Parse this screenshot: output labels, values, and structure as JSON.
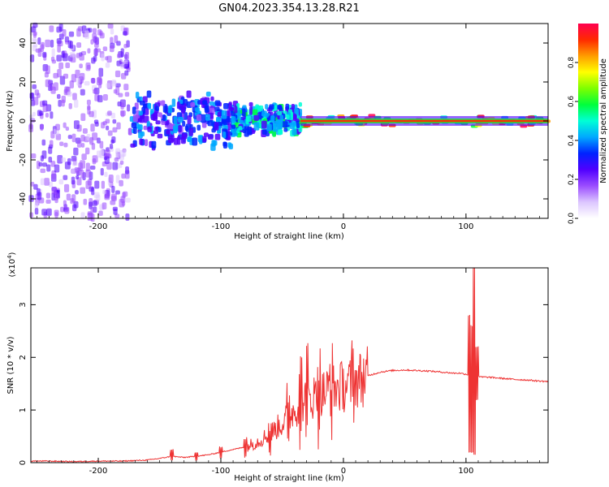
{
  "title": "GN04.2023.354.13.28.R21",
  "chart_data": [
    {
      "type": "heatmap",
      "xlabel": "Height of straight line (km)",
      "ylabel": "Frequency (Hz)",
      "xlim": [
        -255,
        167
      ],
      "ylim": [
        -50,
        50
      ],
      "x_ticks": [
        -200,
        -100,
        0,
        100
      ],
      "y_ticks": [
        -40,
        -20,
        0,
        20,
        40
      ],
      "colorbar": {
        "label": "Normalized spectral amplitude",
        "range": [
          0,
          1
        ],
        "ticks": [
          "0.0",
          "0.2",
          "0.4",
          "0.6",
          "0.8"
        ],
        "colors": [
          "#ffffff",
          "#dcc6ff",
          "#9b4dff",
          "#5000ff",
          "#0022ff",
          "#00a8ff",
          "#00ffd6",
          "#00ff3c",
          "#7dff00",
          "#ffff00",
          "#ff9d00",
          "#ff2a00",
          "#ff0050"
        ]
      },
      "regions": [
        {
          "x_from": -255,
          "x_to": -175,
          "description_band": "broadband",
          "f_range": [
            -50,
            50
          ],
          "level": 0.2
        },
        {
          "x_from": -175,
          "x_to": -90,
          "description_band": "broad",
          "f_range": [
            -15,
            15
          ],
          "level": 0.35
        },
        {
          "x_from": -90,
          "x_to": -35,
          "description_band": "narrowing",
          "f_range": [
            -8,
            10
          ],
          "level": 0.45
        },
        {
          "x_from": -35,
          "x_to": 167,
          "description_band": "narrow",
          "f_range": [
            -3,
            3
          ],
          "level": 0.85
        }
      ]
    },
    {
      "type": "line",
      "xlabel": "Height of straight line (km)",
      "ylabel": "SNR (10 * v/v)",
      "y_scale_label": "(x10",
      "y_scale_exp": "4",
      "y_scale_close": ")",
      "xlim": [
        -255,
        167
      ],
      "ylim": [
        0,
        3.7
      ],
      "x_ticks": [
        -200,
        -100,
        0,
        100
      ],
      "y_ticks": [
        0,
        1,
        2,
        3
      ],
      "series": [
        {
          "color": "#ee3333",
          "x": [
            -255,
            -240,
            -220,
            -200,
            -180,
            -160,
            -150,
            -140,
            -130,
            -120,
            -110,
            -100,
            -90,
            -80,
            -70,
            -60,
            -50,
            -40,
            -30,
            -20,
            -10,
            0,
            10,
            20,
            30,
            40,
            50,
            60,
            70,
            80,
            90,
            95,
            100,
            103,
            105,
            107,
            110,
            120,
            130,
            140,
            150,
            160,
            167
          ],
          "y": [
            0.03,
            0.03,
            0.02,
            0.03,
            0.03,
            0.05,
            0.08,
            0.12,
            0.1,
            0.12,
            0.15,
            0.2,
            0.25,
            0.3,
            0.4,
            0.55,
            0.75,
            1.0,
            1.2,
            1.3,
            1.4,
            1.45,
            1.55,
            1.65,
            1.72,
            1.75,
            1.76,
            1.75,
            1.74,
            1.72,
            1.7,
            1.7,
            1.68,
            1.66,
            1.67,
            1.65,
            1.63,
            1.62,
            1.6,
            1.58,
            1.57,
            1.55,
            1.54
          ],
          "spikes": [
            {
              "x": -140,
              "high": 0.25,
              "low": 0.05
            },
            {
              "x": -120,
              "high": 0.2,
              "low": 0.05
            },
            {
              "x": -100,
              "high": 0.3,
              "low": 0.08
            },
            {
              "x": -80,
              "high": 0.45,
              "low": 0.1
            },
            {
              "x": -60,
              "high": 0.7,
              "low": 0.15
            },
            {
              "x": -45,
              "high": 1.3,
              "low": 0.3
            },
            {
              "x": -35,
              "high": 1.75,
              "low": 0.5
            },
            {
              "x": -30,
              "high": 1.9,
              "low": 0.6
            },
            {
              "x": -20,
              "high": 1.8,
              "low": 0.7
            },
            {
              "x": -10,
              "high": 1.85,
              "low": 0.8
            },
            {
              "x": 8,
              "high": 1.95,
              "low": 1.1
            },
            {
              "x": 103,
              "high": 2.8,
              "low": 0.2
            },
            {
              "x": 105,
              "high": 2.6,
              "low": 0.2
            },
            {
              "x": 107,
              "high": 3.7,
              "low": 0.15
            },
            {
              "x": 109,
              "high": 2.2,
              "low": 1.2
            }
          ]
        }
      ]
    }
  ]
}
